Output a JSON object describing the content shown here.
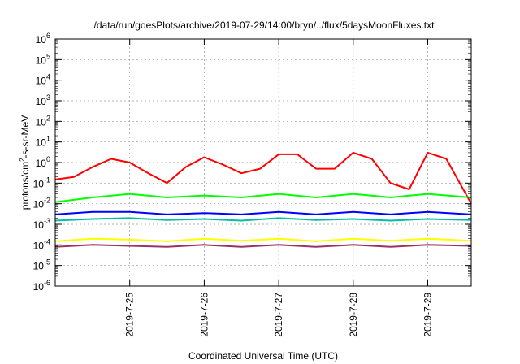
{
  "chart_data": {
    "type": "line",
    "title": "/data/run/goesPlots/archive/2019-07-29/14:00/bryn/../flux/5daysMoonFluxes.txt",
    "xlabel": "Coordinated Universal Time (UTC)",
    "ylabel_parts": [
      "protons/cm",
      "2",
      "-s-sr-MeV"
    ],
    "y_scale": "log",
    "ylim_exp": [
      -6,
      6
    ],
    "y_tick_exps": [
      "-6",
      "-5",
      "-4",
      "-3",
      "-2",
      "-1",
      "0",
      "1",
      "2",
      "3",
      "4",
      "5",
      "6"
    ],
    "y_tick_base": "10",
    "xlim": [
      "2019-07-24T00:00",
      "2019-07-29T14:00"
    ],
    "x_ticks": [
      {
        "label": "2019-7-25",
        "t": "2019-07-25T00:00"
      },
      {
        "label": "2019-7-26",
        "t": "2019-07-26T00:00"
      },
      {
        "label": "2019-7-27",
        "t": "2019-07-27T00:00"
      },
      {
        "label": "2019-7-28",
        "t": "2019-07-28T00:00"
      },
      {
        "label": "2019-7-29",
        "t": "2019-07-29T00:00"
      }
    ],
    "grid": true,
    "series": [
      {
        "color": "#ff0000",
        "hours": [
          0,
          6,
          12,
          18,
          24,
          30,
          36,
          42,
          48,
          54,
          60,
          66,
          72,
          78,
          84,
          90,
          96,
          102,
          108,
          114,
          120,
          126,
          134
        ],
        "values": [
          0.15,
          0.2,
          0.6,
          1.5,
          1.0,
          0.3,
          0.1,
          0.6,
          1.8,
          0.8,
          0.3,
          0.5,
          2.5,
          2.5,
          0.5,
          0.5,
          3.0,
          1.5,
          0.1,
          0.05,
          3.0,
          1.5,
          0.01
        ]
      },
      {
        "color": "#00ff00",
        "hours": [
          0,
          12,
          24,
          36,
          48,
          60,
          72,
          84,
          96,
          108,
          120,
          134
        ],
        "values": [
          0.012,
          0.02,
          0.03,
          0.02,
          0.025,
          0.02,
          0.03,
          0.02,
          0.03,
          0.02,
          0.03,
          0.02
        ]
      },
      {
        "color": "#0000ff",
        "hours": [
          0,
          12,
          24,
          36,
          48,
          60,
          72,
          84,
          96,
          108,
          120,
          134
        ],
        "values": [
          0.003,
          0.004,
          0.004,
          0.003,
          0.0035,
          0.003,
          0.004,
          0.003,
          0.004,
          0.003,
          0.004,
          0.003
        ]
      },
      {
        "color": "#00bfa0",
        "hours": [
          0,
          12,
          24,
          36,
          48,
          60,
          72,
          84,
          96,
          108,
          120,
          134
        ],
        "values": [
          0.0015,
          0.0018,
          0.002,
          0.0016,
          0.0018,
          0.0015,
          0.002,
          0.0016,
          0.0018,
          0.0015,
          0.0018,
          0.0016
        ]
      },
      {
        "color": "#ffff00",
        "hours": [
          0,
          12,
          24,
          36,
          48,
          60,
          72,
          84,
          96,
          108,
          120,
          134
        ],
        "values": [
          0.00015,
          0.0002,
          0.00018,
          0.00015,
          0.0002,
          0.00016,
          0.0002,
          0.00015,
          0.0002,
          0.00016,
          0.0002,
          0.00016
        ]
      },
      {
        "color": "#993366",
        "hours": [
          0,
          12,
          24,
          36,
          48,
          60,
          72,
          84,
          96,
          108,
          120,
          134
        ],
        "values": [
          8e-05,
          0.0001,
          9e-05,
          8e-05,
          0.0001,
          8e-05,
          0.0001,
          8e-05,
          0.0001,
          8e-05,
          0.0001,
          9e-05
        ]
      }
    ]
  }
}
